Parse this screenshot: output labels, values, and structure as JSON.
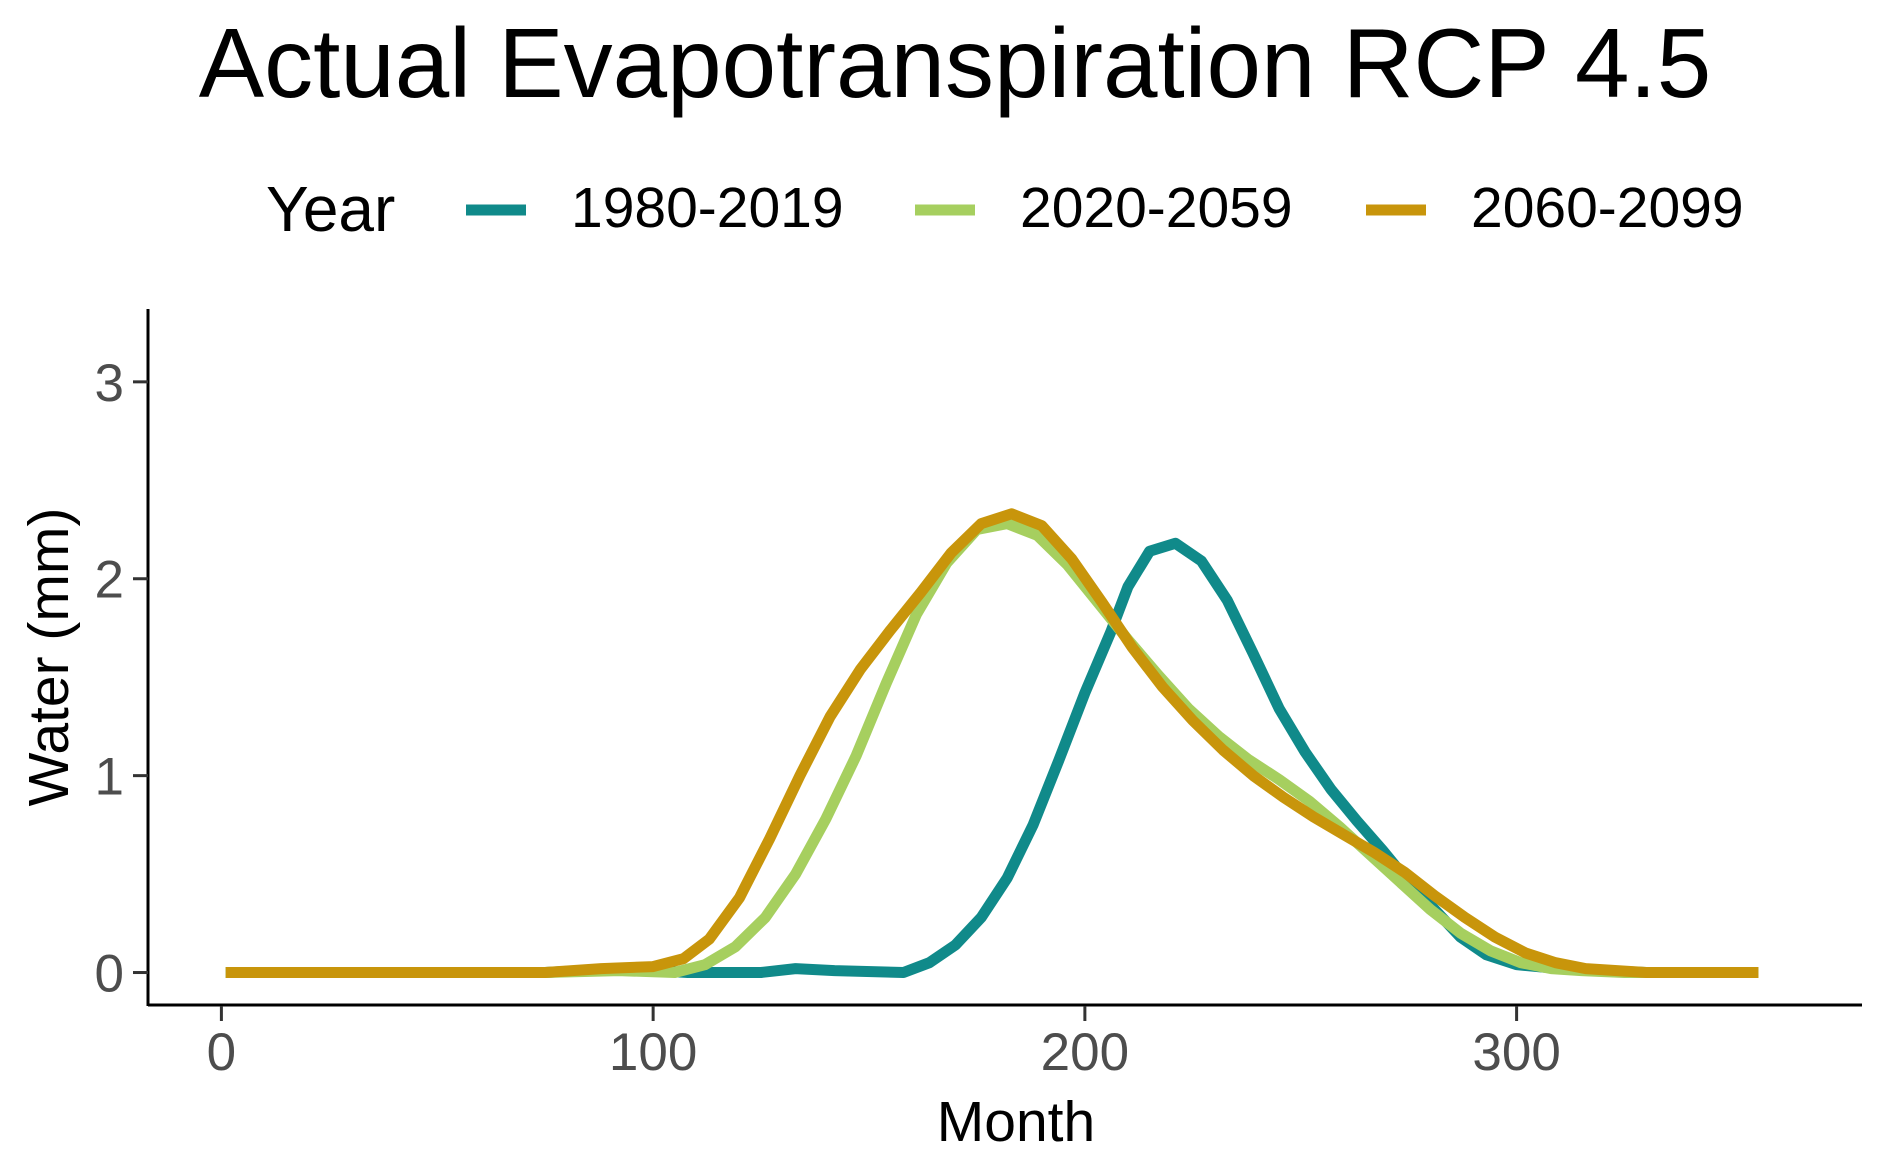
{
  "chart_data": {
    "type": "line",
    "title": "Actual Evapotranspiration RCP 4.5",
    "xlabel": "Month",
    "ylabel": "Water (mm)",
    "xlim": [
      -17,
      380
    ],
    "ylim": [
      -0.17,
      3.37
    ],
    "xticks": [
      0,
      100,
      200,
      300
    ],
    "yticks": [
      0,
      1,
      2,
      3
    ],
    "grid": false,
    "legend": {
      "title": "Year",
      "position": "top"
    },
    "series": [
      {
        "name": "1980-2019",
        "color": "#108a8a",
        "x": [
          1,
          75,
          92,
          108,
          125,
          133,
          142,
          158,
          164,
          170,
          176,
          182,
          188,
          194,
          200,
          206,
          210,
          215,
          221,
          227,
          233,
          239,
          245,
          251,
          257,
          263,
          269,
          275,
          281,
          287,
          293,
          300,
          310,
          320,
          330,
          356
        ],
        "y": [
          0,
          0,
          0.02,
          0,
          0,
          0.02,
          0.01,
          0,
          0.05,
          0.14,
          0.28,
          0.48,
          0.75,
          1.08,
          1.42,
          1.73,
          1.96,
          2.14,
          2.18,
          2.09,
          1.89,
          1.62,
          1.34,
          1.12,
          0.93,
          0.77,
          0.62,
          0.46,
          0.32,
          0.18,
          0.09,
          0.04,
          0.02,
          0.01,
          0,
          0
        ]
      },
      {
        "name": "2020-2059",
        "color": "#a6cf5f",
        "x": [
          1,
          75,
          92,
          105,
          112,
          119,
          126,
          133,
          140,
          147,
          154,
          161,
          168,
          175,
          182,
          189,
          196,
          203,
          210,
          217,
          224,
          231,
          238,
          245,
          252,
          259,
          266,
          273,
          280,
          287,
          294,
          301,
          308,
          315,
          325,
          356
        ],
        "y": [
          0,
          0,
          0.01,
          0,
          0.04,
          0.13,
          0.28,
          0.5,
          0.78,
          1.1,
          1.47,
          1.82,
          2.08,
          2.25,
          2.28,
          2.22,
          2.07,
          1.88,
          1.69,
          1.51,
          1.34,
          1.2,
          1.08,
          0.98,
          0.87,
          0.74,
          0.6,
          0.46,
          0.32,
          0.2,
          0.11,
          0.05,
          0.02,
          0.01,
          0,
          0
        ]
      },
      {
        "name": "2060-2099",
        "color": "#c8950b",
        "x": [
          1,
          75,
          88,
          100,
          107,
          113,
          120,
          127,
          134,
          141,
          148,
          155,
          162,
          169,
          176,
          183,
          190,
          197,
          204,
          211,
          218,
          225,
          232,
          239,
          246,
          253,
          260,
          267,
          274,
          281,
          288,
          295,
          302,
          309,
          316,
          330,
          356
        ],
        "y": [
          0,
          0,
          0.02,
          0.03,
          0.07,
          0.17,
          0.38,
          0.68,
          1.0,
          1.3,
          1.54,
          1.74,
          1.93,
          2.13,
          2.28,
          2.33,
          2.27,
          2.1,
          1.88,
          1.65,
          1.45,
          1.28,
          1.13,
          1.0,
          0.89,
          0.79,
          0.7,
          0.61,
          0.51,
          0.39,
          0.28,
          0.18,
          0.1,
          0.05,
          0.02,
          0,
          0
        ]
      }
    ]
  }
}
